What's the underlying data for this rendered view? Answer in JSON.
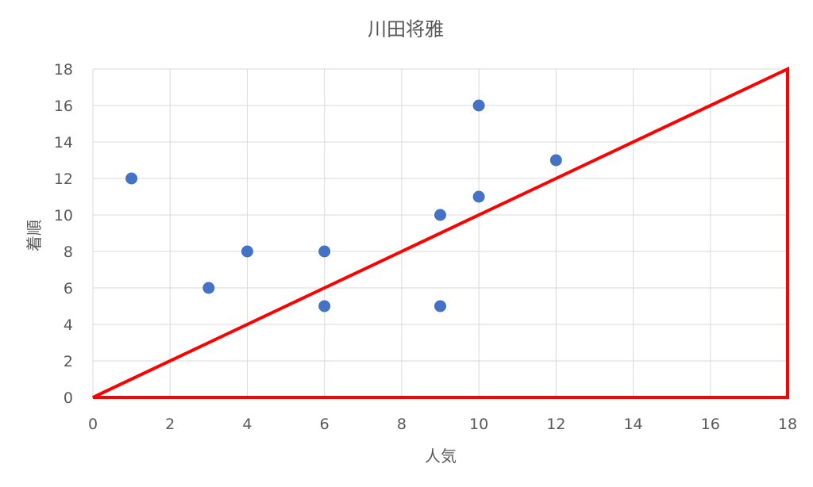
{
  "chart_data": {
    "type": "scatter",
    "title": "川田将雅",
    "xlabel": "人気",
    "ylabel": "着順",
    "xlim": [
      0,
      18
    ],
    "ylim": [
      0,
      18
    ],
    "x_ticks": [
      0,
      2,
      4,
      6,
      8,
      10,
      12,
      14,
      16,
      18
    ],
    "y_ticks": [
      0,
      2,
      4,
      6,
      8,
      10,
      12,
      14,
      16,
      18
    ],
    "grid": true,
    "marker_color": "#4472c4",
    "points": [
      {
        "x": 1,
        "y": 12
      },
      {
        "x": 3,
        "y": 6
      },
      {
        "x": 4,
        "y": 8
      },
      {
        "x": 6,
        "y": 8
      },
      {
        "x": 6,
        "y": 5
      },
      {
        "x": 9,
        "y": 10
      },
      {
        "x": 9,
        "y": 5
      },
      {
        "x": 10,
        "y": 16
      },
      {
        "x": 10,
        "y": 11
      },
      {
        "x": 12,
        "y": 13
      }
    ],
    "annotation": {
      "shape": "triangle",
      "color": "#ff0000",
      "vertices": [
        [
          0,
          0
        ],
        [
          18,
          18
        ],
        [
          18,
          0
        ]
      ]
    }
  }
}
